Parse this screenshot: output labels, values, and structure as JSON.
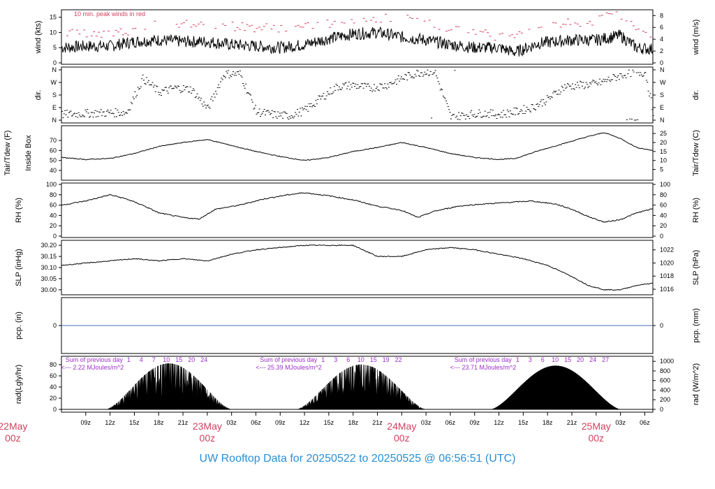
{
  "title": "UW Rooftop Data for 20250522  to  20250525 @ 06:56:51  (UTC)",
  "colors": {
    "title": "#2a8fd6",
    "peak": "#d43f5e",
    "date": "#d43f5e",
    "solar_note": "#9b30c8",
    "precip": "#4a6fb3",
    "trace": "#000000"
  },
  "panels": {
    "wind": {
      "left_label": "wind (kts)",
      "right_label": "wind (m/s)",
      "note": "10 min. peak winds in red"
    },
    "dir": {
      "left_label": "dir.",
      "right_label": "dir."
    },
    "temp": {
      "left_label_1": "Tair/Tdew (F)",
      "left_label_2": "Inside Box",
      "right_label": "Tair/Tdew (C)"
    },
    "rh": {
      "left_label": "RH (%)",
      "right_label": "RH (%)"
    },
    "slp": {
      "left_label": "SLP (inHg)",
      "right_label": "SLP (hPa)"
    },
    "pcp": {
      "left_label": "pcp. (in)",
      "right_label": "pcp. (mm)"
    },
    "rad": {
      "left_label": "rad(Lgly/hr)",
      "right_label": "rad (W/m^2)"
    }
  },
  "solar_notes": [
    {
      "line1": "Sum of previous day",
      "line2": "<--- 2.22 MJoules/m^2"
    },
    {
      "line1": "Sum of previous day",
      "line2": "<--- 25.39 MJoules/m^2"
    },
    {
      "line1": "Sum of previous day",
      "line2": "<--- 23.71 MJoules/m^2"
    }
  ],
  "date_labels": [
    {
      "day": "22May",
      "hour": "00z"
    },
    {
      "day": "23May",
      "hour": "00z"
    },
    {
      "day": "24May",
      "hour": "00z"
    },
    {
      "day": "25May",
      "hour": "00z"
    }
  ],
  "chart_data": {
    "type": "line",
    "x_axis": {
      "start_hour": 6,
      "end_hour": 79,
      "tick_labels": [
        "09z",
        "12z",
        "15z",
        "18z",
        "21z",
        "03z",
        "06z",
        "09z",
        "12z",
        "15z",
        "18z",
        "21z",
        "03z",
        "06z",
        "09z",
        "12z",
        "15z",
        "18z",
        "21z",
        "03z",
        "06z"
      ],
      "tick_hours": [
        9,
        12,
        15,
        18,
        21,
        27,
        30,
        33,
        36,
        39,
        42,
        45,
        51,
        54,
        57,
        60,
        63,
        66,
        69,
        75,
        78
      ]
    },
    "wind": {
      "ylim": [
        0,
        17
      ],
      "yticks": [
        0,
        5,
        10,
        15
      ],
      "right_ticks_ms": [
        0,
        2,
        4,
        6,
        8
      ],
      "mean_kts": [
        [
          6,
          5
        ],
        [
          9,
          5.5
        ],
        [
          12,
          5.5
        ],
        [
          15,
          7
        ],
        [
          18,
          7.5
        ],
        [
          21,
          7
        ],
        [
          24,
          7
        ],
        [
          27,
          6
        ],
        [
          30,
          5.5
        ],
        [
          33,
          5
        ],
        [
          36,
          6
        ],
        [
          39,
          8
        ],
        [
          42,
          9.5
        ],
        [
          45,
          10
        ],
        [
          48,
          8.5
        ],
        [
          51,
          7.5
        ],
        [
          54,
          6
        ],
        [
          57,
          5
        ],
        [
          60,
          5
        ],
        [
          62,
          3.5
        ],
        [
          65,
          6.5
        ],
        [
          69,
          7.5
        ],
        [
          72,
          7.5
        ],
        [
          75,
          9
        ],
        [
          77,
          5
        ],
        [
          79,
          4.5
        ]
      ],
      "peak_kts": [
        [
          6,
          9
        ],
        [
          12,
          9
        ],
        [
          18,
          12
        ],
        [
          24,
          12
        ],
        [
          30,
          11
        ],
        [
          36,
          11
        ],
        [
          42,
          14
        ],
        [
          48,
          14
        ],
        [
          54,
          11
        ],
        [
          60,
          8
        ],
        [
          66,
          12
        ],
        [
          72,
          13
        ],
        [
          74,
          17
        ],
        [
          76,
          12
        ],
        [
          79,
          8
        ]
      ]
    },
    "direction": {
      "ylabels": [
        "N",
        "E",
        "S",
        "W",
        "N"
      ],
      "deg": [
        [
          6,
          40
        ],
        [
          10,
          50
        ],
        [
          14,
          55
        ],
        [
          16,
          300
        ],
        [
          18,
          200
        ],
        [
          20,
          230
        ],
        [
          22,
          220
        ],
        [
          24,
          80
        ],
        [
          26,
          330
        ],
        [
          28,
          330
        ],
        [
          30,
          60
        ],
        [
          32,
          40
        ],
        [
          34,
          30
        ],
        [
          36,
          70
        ],
        [
          38,
          160
        ],
        [
          40,
          240
        ],
        [
          42,
          250
        ],
        [
          44,
          230
        ],
        [
          46,
          250
        ],
        [
          48,
          300
        ],
        [
          50,
          340
        ],
        [
          52,
          350
        ],
        [
          54,
          20
        ],
        [
          56,
          40
        ],
        [
          58,
          50
        ],
        [
          60,
          40
        ],
        [
          62,
          60
        ],
        [
          64,
          90
        ],
        [
          66,
          150
        ],
        [
          68,
          240
        ],
        [
          70,
          250
        ],
        [
          72,
          260
        ],
        [
          74,
          300
        ],
        [
          76,
          340
        ],
        [
          78,
          340
        ],
        [
          79,
          50
        ]
      ]
    },
    "temperature": {
      "ylim": [
        33,
        82
      ],
      "yticks": [
        40,
        50,
        60,
        70
      ],
      "right_ticks_c": [
        5,
        10,
        15,
        20,
        25
      ],
      "points": [
        [
          6,
          53
        ],
        [
          9,
          51
        ],
        [
          12,
          52
        ],
        [
          15,
          57
        ],
        [
          18,
          64
        ],
        [
          21,
          68
        ],
        [
          24,
          71
        ],
        [
          27,
          65
        ],
        [
          30,
          59
        ],
        [
          33,
          54
        ],
        [
          36,
          50
        ],
        [
          39,
          53
        ],
        [
          42,
          59
        ],
        [
          45,
          63
        ],
        [
          48,
          68
        ],
        [
          51,
          63
        ],
        [
          54,
          57
        ],
        [
          57,
          53
        ],
        [
          60,
          51
        ],
        [
          62,
          52
        ],
        [
          65,
          60
        ],
        [
          68,
          67
        ],
        [
          71,
          74
        ],
        [
          73,
          78
        ],
        [
          75,
          72
        ],
        [
          77,
          63
        ],
        [
          79,
          60
        ]
      ]
    },
    "rh": {
      "ylim": [
        0,
        100
      ],
      "yticks": [
        0,
        20,
        40,
        60,
        80,
        100
      ],
      "points": [
        [
          6,
          60
        ],
        [
          9,
          68
        ],
        [
          12,
          80
        ],
        [
          14,
          72
        ],
        [
          16,
          60
        ],
        [
          18,
          45
        ],
        [
          21,
          36
        ],
        [
          23,
          33
        ],
        [
          25,
          52
        ],
        [
          28,
          60
        ],
        [
          31,
          72
        ],
        [
          34,
          80
        ],
        [
          36,
          84
        ],
        [
          39,
          78
        ],
        [
          42,
          70
        ],
        [
          45,
          58
        ],
        [
          48,
          50
        ],
        [
          50,
          36
        ],
        [
          52,
          48
        ],
        [
          55,
          58
        ],
        [
          58,
          62
        ],
        [
          61,
          65
        ],
        [
          64,
          68
        ],
        [
          67,
          62
        ],
        [
          69,
          52
        ],
        [
          71,
          38
        ],
        [
          73,
          27
        ],
        [
          75,
          32
        ],
        [
          77,
          45
        ],
        [
          79,
          53
        ]
      ]
    },
    "slp": {
      "ylim": [
        29.99,
        30.21
      ],
      "yticks": [
        30.0,
        30.05,
        30.1,
        30.15,
        30.2
      ],
      "right_ticks_hpa": [
        1016,
        1018,
        1020,
        1022
      ],
      "points": [
        [
          6,
          30.11
        ],
        [
          9,
          30.12
        ],
        [
          12,
          30.13
        ],
        [
          15,
          30.14
        ],
        [
          18,
          30.13
        ],
        [
          21,
          30.14
        ],
        [
          24,
          30.13
        ],
        [
          27,
          30.16
        ],
        [
          30,
          30.18
        ],
        [
          33,
          30.19
        ],
        [
          36,
          30.2
        ],
        [
          39,
          30.2
        ],
        [
          42,
          30.2
        ],
        [
          45,
          30.15
        ],
        [
          48,
          30.15
        ],
        [
          51,
          30.18
        ],
        [
          54,
          30.19
        ],
        [
          57,
          30.18
        ],
        [
          60,
          30.16
        ],
        [
          63,
          30.14
        ],
        [
          66,
          30.11
        ],
        [
          69,
          30.06
        ],
        [
          71,
          30.02
        ],
        [
          73,
          30.0
        ],
        [
          75,
          30.0
        ],
        [
          77,
          30.02
        ],
        [
          79,
          30.03
        ]
      ]
    },
    "precip": {
      "yticks": [
        0
      ],
      "value": 0
    },
    "radiation": {
      "ylim": [
        0,
        90
      ],
      "yticks": [
        0,
        20,
        40,
        60,
        80
      ],
      "right_ticks_wm2": [
        0,
        200,
        400,
        600,
        800,
        1000
      ],
      "days": [
        {
          "start": 11.5,
          "end": 27,
          "peak": 82
        },
        {
          "start": 35,
          "end": 51,
          "peak": 80
        },
        {
          "start": 59,
          "end": 75,
          "peak": 78
        }
      ],
      "top_day_numbers": [
        {
          "hour": 14,
          "labels": [
            "1",
            "4",
            "7",
            "10",
            "15",
            "20",
            "24"
          ]
        },
        {
          "hour": 38,
          "labels": [
            "1",
            "3",
            "6",
            "10",
            "15",
            "19",
            "22"
          ]
        },
        {
          "hour": 62,
          "labels": [
            "1",
            "3",
            "6",
            "10",
            "15",
            "20",
            "24",
            "27"
          ]
        }
      ]
    }
  }
}
